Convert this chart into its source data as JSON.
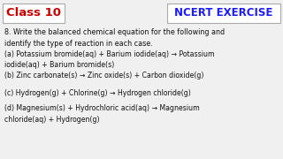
{
  "bg_color": "#f0f0f0",
  "class_text": "Class 10",
  "class_color": "#cc0000",
  "class_box_facecolor": "#ffffff",
  "ncert_text": "NCERT EXERCISE",
  "ncert_color": "#1a1aff",
  "ncert_box_facecolor": "#ffffff",
  "border_color": "#aaaaaa",
  "question": "8. Write the balanced chemical equation for the following and\nidentify the type of reaction in each case.",
  "lines": [
    "(a) Potassium bromide(aq) + Barium iodide(aq) → Potassium\niodide(aq) + Barium bromide(s)",
    "(b) Zinc carbonate(s) → Zinc oxide(s) + Carbon dioxide(g)",
    "(c) Hydrogen(g) + Chlorine(g) → Hydrogen chloride(g)",
    "(d) Magnesium(s) + Hydrochloric acid(aq) → Magnesium\nchloride(aq) + Hydrogen(g)"
  ],
  "text_color": "#111111",
  "font_size_class": 9.5,
  "font_size_ncert": 8.5,
  "font_size_question": 5.8,
  "font_size_lines": 5.6
}
